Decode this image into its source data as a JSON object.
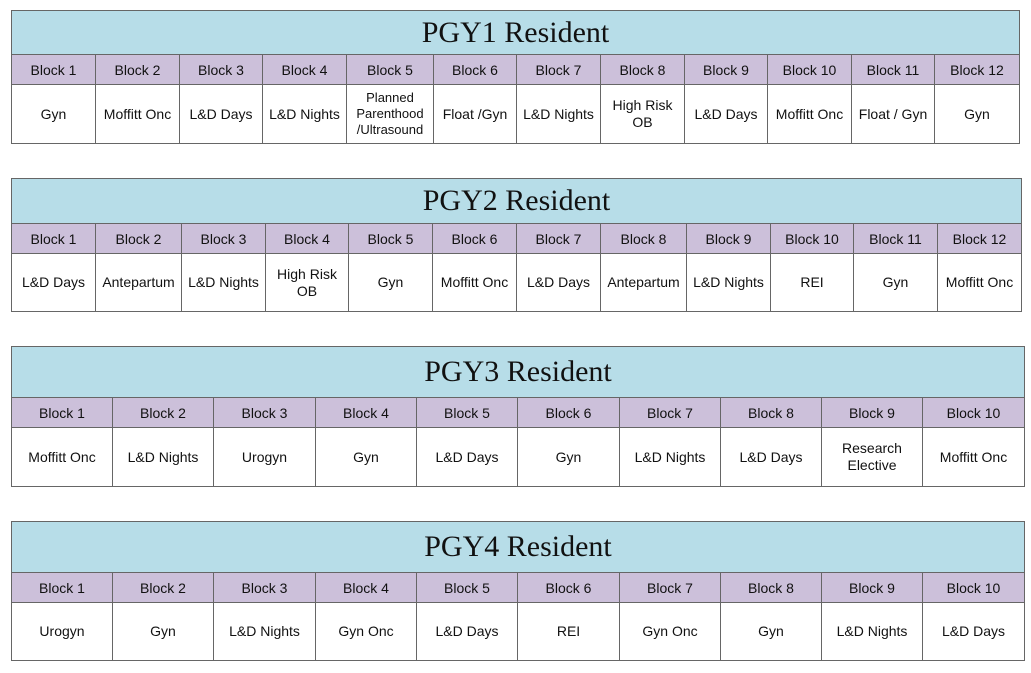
{
  "colors": {
    "title_bg": "#b7dde8",
    "block_bg": "#ccc0da"
  },
  "tables": [
    {
      "title": "PGY1 Resident",
      "blocks": [
        "Block 1",
        "Block 2",
        "Block 3",
        "Block 4",
        "Block 5",
        "Block 6",
        "Block 7",
        "Block 8",
        "Block 9",
        "Block 10",
        "Block 11",
        "Block 12"
      ],
      "rotations": [
        "Gyn",
        "Moffitt Onc",
        "L&D Days",
        "L&D Nights",
        "Planned Parenthood /Ultrasound",
        "Float /Gyn",
        "L&D Nights",
        "High Risk OB",
        "L&D Days",
        "Moffitt Onc",
        "Float / Gyn",
        "Gyn"
      ]
    },
    {
      "title": "PGY2 Resident",
      "blocks": [
        "Block 1",
        "Block 2",
        "Block 3",
        "Block 4",
        "Block 5",
        "Block 6",
        "Block 7",
        "Block 8",
        "Block 9",
        "Block 10",
        "Block 11",
        "Block 12"
      ],
      "rotations": [
        "L&D Days",
        "Antepartum",
        "L&D Nights",
        "High Risk OB",
        "Gyn",
        "Moffitt Onc",
        "L&D Days",
        "Antepartum",
        "L&D Nights",
        "REI",
        "Gyn",
        "Moffitt Onc"
      ]
    },
    {
      "title": "PGY3 Resident",
      "blocks": [
        "Block 1",
        "Block 2",
        "Block 3",
        "Block 4",
        "Block 5",
        "Block 6",
        "Block 7",
        "Block 8",
        "Block 9",
        "Block 10"
      ],
      "rotations": [
        "Moffitt Onc",
        "L&D Nights",
        "Urogyn",
        "Gyn",
        "L&D Days",
        "Gyn",
        "L&D Nights",
        "L&D Days",
        "Research Elective",
        "Moffitt Onc"
      ]
    },
    {
      "title": "PGY4 Resident",
      "blocks": [
        "Block 1",
        "Block 2",
        "Block 3",
        "Block 4",
        "Block 5",
        "Block 6",
        "Block 7",
        "Block 8",
        "Block 9",
        "Block 10"
      ],
      "rotations": [
        "Urogyn",
        "Gyn",
        "L&D Nights",
        "Gyn Onc",
        "L&D Days",
        "REI",
        "Gyn Onc",
        "Gyn",
        "L&D Nights",
        "L&D Days"
      ]
    }
  ]
}
